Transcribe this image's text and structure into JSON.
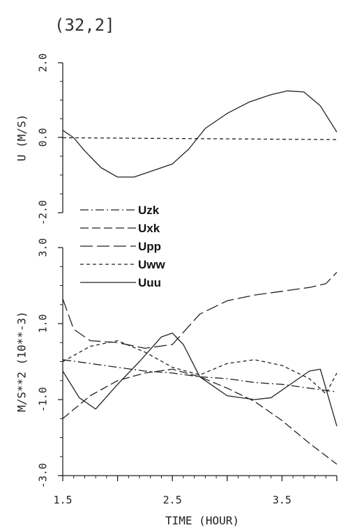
{
  "title": "(32,2]",
  "xlabel": "TIME (HOUR)",
  "x_ticks": [
    "1.5",
    "2.5",
    "3.5"
  ],
  "chart_data": [
    {
      "type": "line",
      "ylabel": "U (M/S)",
      "ylim": [
        -2.0,
        2.0
      ],
      "xlim": [
        1.5,
        4.0
      ],
      "y_ticks": [
        "2.0",
        "0.0",
        "-2.0"
      ],
      "series": [
        {
          "style": "dashed-short",
          "x": [
            1.5,
            4.0
          ],
          "y": [
            0.0,
            -0.05
          ]
        },
        {
          "style": "solid",
          "x": [
            1.5,
            1.6,
            1.7,
            1.85,
            2.0,
            2.15,
            2.3,
            2.5,
            2.65,
            2.8,
            3.0,
            3.2,
            3.4,
            3.55,
            3.7,
            3.85,
            4.0
          ],
          "y": [
            0.2,
            0.0,
            -0.35,
            -0.8,
            -1.05,
            -1.05,
            -0.9,
            -0.7,
            -0.3,
            0.25,
            0.65,
            0.95,
            1.15,
            1.25,
            1.22,
            0.85,
            0.15
          ]
        }
      ]
    },
    {
      "type": "line",
      "ylabel": "M/S**2 (10**-3)",
      "ylim": [
        -3.0,
        3.0
      ],
      "xlim": [
        1.5,
        4.0
      ],
      "y_ticks": [
        "3.0",
        "1.0",
        "-1.0",
        "-3.0"
      ],
      "legend": [
        {
          "name": "Uzk",
          "style": "dashdot"
        },
        {
          "name": "Uxk",
          "style": "dashed-long"
        },
        {
          "name": "Upp",
          "style": "dashed-longer"
        },
        {
          "name": "Uww",
          "style": "dashed-short"
        },
        {
          "name": "Uuu",
          "style": "solid"
        }
      ],
      "series": [
        {
          "name": "Uzk",
          "style": "dashdot",
          "x": [
            1.5,
            1.75,
            2.0,
            2.25,
            2.5,
            2.75,
            3.0,
            3.25,
            3.5,
            3.75,
            4.0
          ],
          "y": [
            0.05,
            -0.05,
            -0.15,
            -0.25,
            -0.3,
            -0.4,
            -0.45,
            -0.55,
            -0.6,
            -0.7,
            -0.8
          ]
        },
        {
          "name": "Uxk",
          "style": "dashed-long",
          "x": [
            1.5,
            1.75,
            2.0,
            2.25,
            2.5,
            2.75,
            3.0,
            3.25,
            3.5,
            3.75,
            4.0
          ],
          "y": [
            -1.5,
            -0.9,
            -0.5,
            -0.3,
            -0.2,
            -0.4,
            -0.7,
            -1.05,
            -1.55,
            -2.15,
            -2.7
          ]
        },
        {
          "name": "Upp",
          "style": "dashed-longer",
          "x": [
            1.5,
            1.6,
            1.75,
            2.0,
            2.25,
            2.5,
            2.75,
            3.0,
            3.25,
            3.5,
            3.75,
            3.9,
            4.0
          ],
          "y": [
            1.65,
            0.85,
            0.55,
            0.5,
            0.35,
            0.45,
            1.25,
            1.6,
            1.75,
            1.85,
            1.95,
            2.05,
            2.35
          ]
        },
        {
          "name": "Uww",
          "style": "dashed-short",
          "x": [
            1.5,
            1.75,
            2.0,
            2.25,
            2.5,
            2.75,
            3.0,
            3.25,
            3.5,
            3.75,
            3.9,
            4.0
          ],
          "y": [
            0.0,
            0.4,
            0.55,
            0.25,
            -0.15,
            -0.35,
            -0.05,
            0.05,
            -0.1,
            -0.45,
            -0.85,
            -0.3
          ]
        },
        {
          "name": "Uuu",
          "style": "solid",
          "x": [
            1.5,
            1.65,
            1.8,
            2.0,
            2.2,
            2.4,
            2.5,
            2.6,
            2.75,
            3.0,
            3.25,
            3.4,
            3.6,
            3.75,
            3.85,
            4.0
          ],
          "y": [
            -0.25,
            -0.95,
            -1.25,
            -0.6,
            0.0,
            0.65,
            0.75,
            0.45,
            -0.4,
            -0.9,
            -1.0,
            -0.95,
            -0.55,
            -0.25,
            -0.2,
            -1.7
          ]
        }
      ]
    }
  ]
}
